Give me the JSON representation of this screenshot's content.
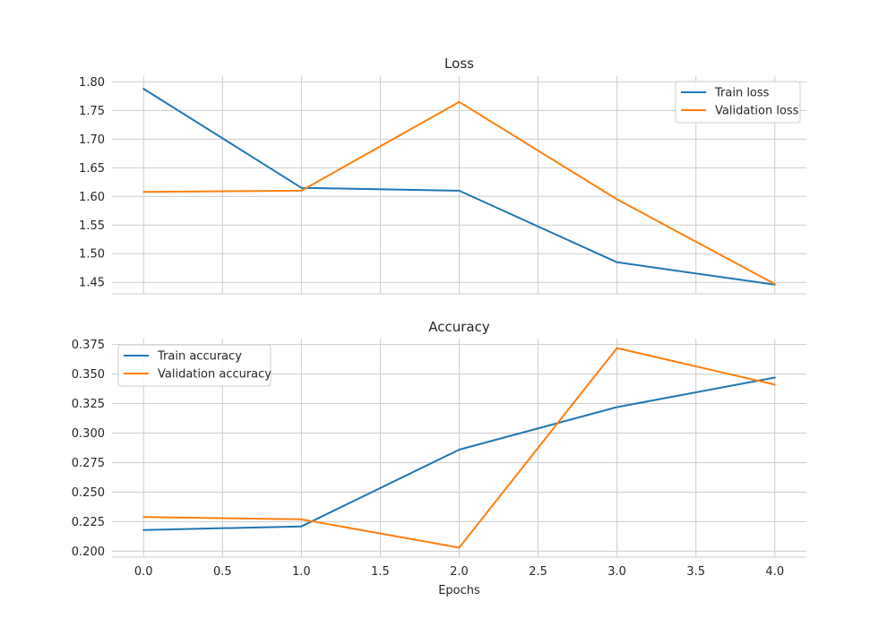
{
  "chart_data": [
    {
      "type": "line",
      "title": "Loss",
      "xlabel": "",
      "ylabel": "",
      "x": [
        0,
        1,
        2,
        3,
        4
      ],
      "xlim": [
        -0.2,
        4.2
      ],
      "ylim": [
        1.43,
        1.81
      ],
      "xticks": [
        "0.0",
        "0.5",
        "1.0",
        "1.5",
        "2.0",
        "2.5",
        "3.0",
        "3.5",
        "4.0"
      ],
      "yticks": [
        "1.45",
        "1.50",
        "1.55",
        "1.60",
        "1.65",
        "1.70",
        "1.75",
        "1.80"
      ],
      "show_x_tick_labels": false,
      "grid": true,
      "legend_position": "top-right",
      "series": [
        {
          "name": "Train loss",
          "color": "#1f77b4",
          "values": [
            1.788,
            1.615,
            1.61,
            1.485,
            1.446
          ]
        },
        {
          "name": "Validation loss",
          "color": "#ff7f0e",
          "values": [
            1.608,
            1.61,
            1.765,
            1.595,
            1.447
          ]
        }
      ]
    },
    {
      "type": "line",
      "title": "Accuracy",
      "xlabel": "Epochs",
      "ylabel": "",
      "x": [
        0,
        1,
        2,
        3,
        4
      ],
      "xlim": [
        -0.2,
        4.2
      ],
      "ylim": [
        0.195,
        0.38
      ],
      "xticks": [
        "0.0",
        "0.5",
        "1.0",
        "1.5",
        "2.0",
        "2.5",
        "3.0",
        "3.5",
        "4.0"
      ],
      "yticks": [
        "0.200",
        "0.225",
        "0.250",
        "0.275",
        "0.300",
        "0.325",
        "0.350",
        "0.375"
      ],
      "show_x_tick_labels": true,
      "grid": true,
      "legend_position": "top-left",
      "series": [
        {
          "name": "Train accuracy",
          "color": "#1f77b4",
          "values": [
            0.218,
            0.221,
            0.286,
            0.322,
            0.347
          ]
        },
        {
          "name": "Validation accuracy",
          "color": "#ff7f0e",
          "values": [
            0.229,
            0.227,
            0.203,
            0.372,
            0.341
          ]
        }
      ]
    }
  ]
}
